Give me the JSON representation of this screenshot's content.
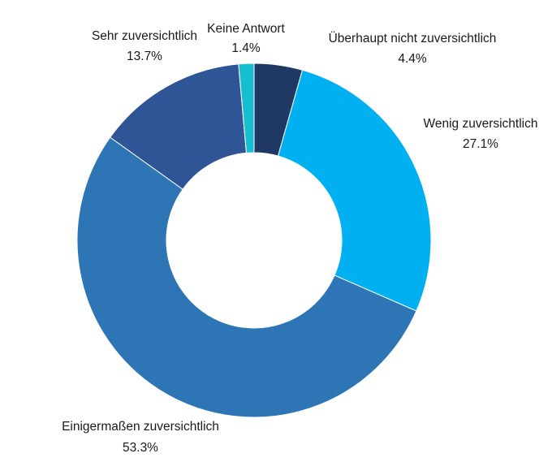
{
  "chart_data": {
    "type": "pie",
    "donut": true,
    "title": "",
    "categories": [
      "Überhaupt nicht zuversichtlich",
      "Wenig zuversichtlich",
      "Einigermaßen zuversichtlich",
      "Sehr zuversichtlich",
      "Keine Antwort"
    ],
    "values": [
      4.4,
      27.1,
      53.3,
      13.7,
      1.4
    ],
    "value_labels": [
      "4.4%",
      "27.1%",
      "53.3%",
      "13.7%",
      "1.4%"
    ],
    "colors": [
      "#1f3864",
      "#00b0f0",
      "#2e75b6",
      "#2f5597",
      "#17becf"
    ],
    "legend": "none",
    "start_angle": "top",
    "direction": "clockwise"
  }
}
